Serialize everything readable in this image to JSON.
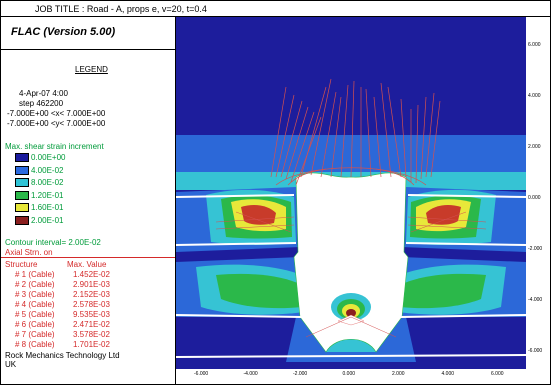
{
  "job_title": "JOB TITLE : Road - A, props e, v=20, t=0.4",
  "code_name": "FLAC (Version 5.00)",
  "legend": {
    "heading": "LEGEND",
    "date": "4-Apr-07  4:00",
    "step": "step   462200",
    "x_range": "-7.000E+00 <x< 7.000E+00",
    "y_range": "-7.000E+00 <y< 7.000E+00"
  },
  "contour": {
    "title": "Max. shear strain increment",
    "levels": [
      {
        "label": "0.00E+00",
        "color": "#1a1a9e"
      },
      {
        "label": "4.00E-02",
        "color": "#2b6ae0"
      },
      {
        "label": "8.00E-02",
        "color": "#2fc4d6"
      },
      {
        "label": "1.20E-01",
        "color": "#2bb84a"
      },
      {
        "label": "1.60E-01",
        "color": "#e8e83a"
      },
      {
        "label": "2.00E-01",
        "color": "#8a1f1f"
      }
    ],
    "interval": "Contour interval= 2.00E-02",
    "axial": "Axial Strn. on"
  },
  "structure": {
    "header_structure": "Structure",
    "header_value": "Max. Value",
    "rows": [
      {
        "name": "# 1 (Cable)",
        "value": "1.452E-02"
      },
      {
        "name": "# 2 (Cable)",
        "value": "2.901E-03"
      },
      {
        "name": "# 3 (Cable)",
        "value": "2.152E-03"
      },
      {
        "name": "# 4 (Cable)",
        "value": "2.578E-03"
      },
      {
        "name": "# 5 (Cable)",
        "value": "9.535E-03"
      },
      {
        "name": "# 6 (Cable)",
        "value": "2.471E-02"
      },
      {
        "name": "# 7 (Cable)",
        "value": "3.578E-02"
      },
      {
        "name": "# 8 (Cable)",
        "value": "1.701E-02"
      }
    ]
  },
  "company": "Rock Mechanics Technology Ltd",
  "country": "UK",
  "y_ticks": [
    "6.000",
    "4.000",
    "2.000",
    "0.000",
    "-2.000",
    "-4.000",
    "-6.000"
  ],
  "x_ticks": [
    "-6.000",
    "-4.000",
    "-2.000",
    "0.000",
    "2.000",
    "4.000",
    "6.000"
  ]
}
